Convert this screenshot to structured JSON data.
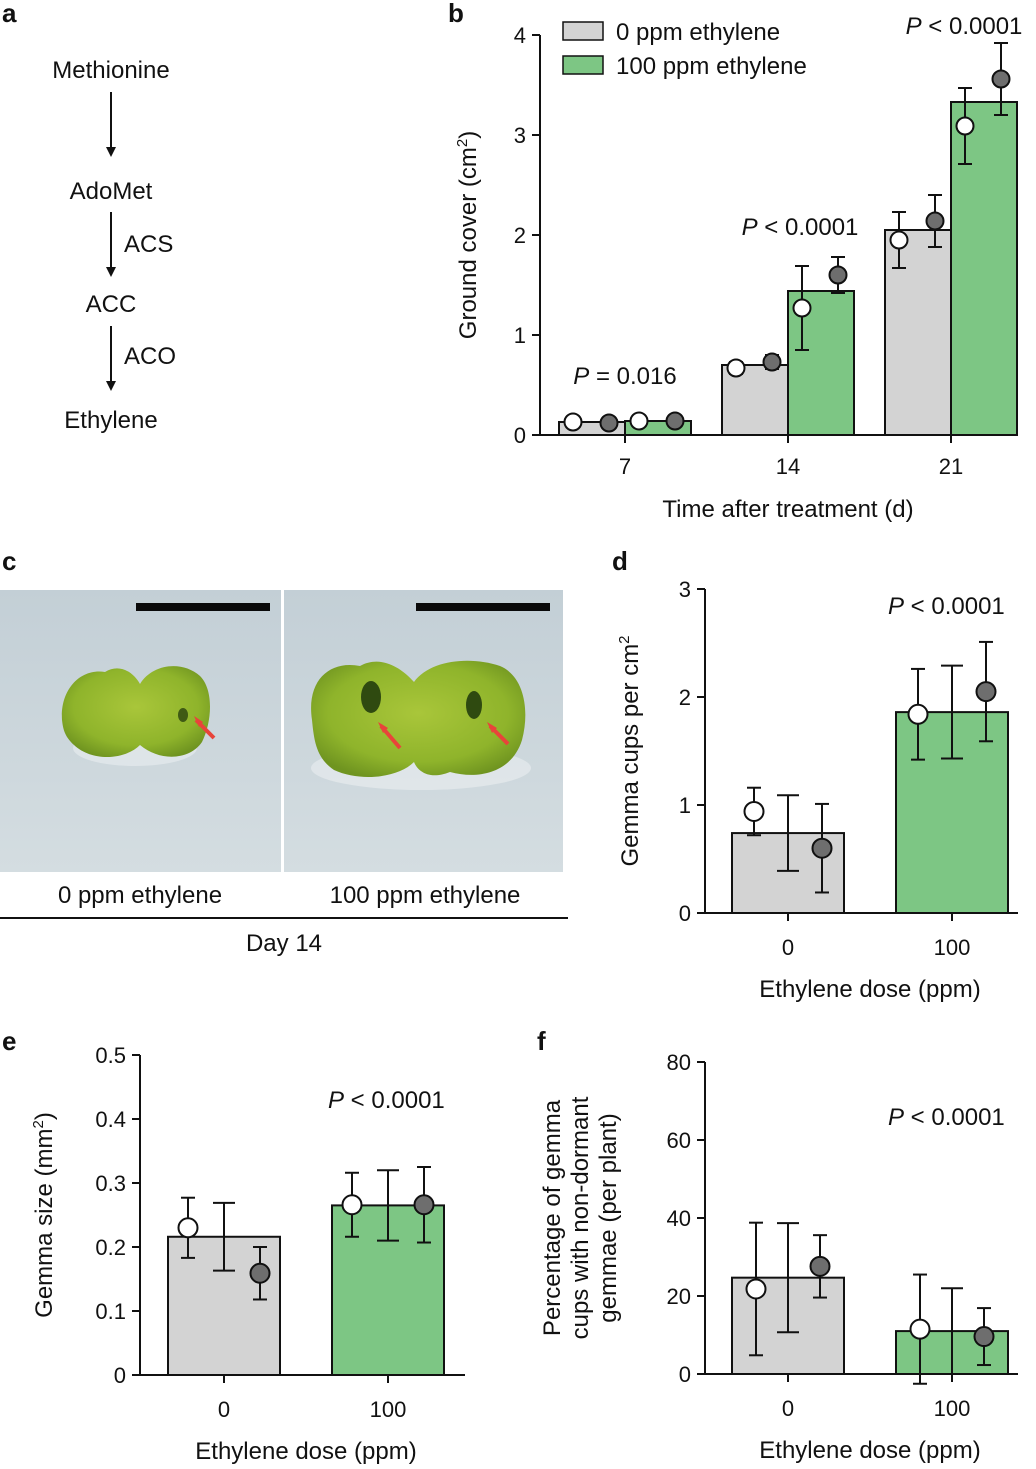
{
  "colors": {
    "control": "#d3d3d3",
    "treated": "#7dc684",
    "dark_point": "#6e6e6e",
    "arrow_red": "#e8443a"
  },
  "panel_a": {
    "letter": "a",
    "nodes": [
      "Methionine",
      "AdoMet",
      "ACC",
      "Ethylene"
    ],
    "enzymes": [
      "ACS",
      "ACO"
    ]
  },
  "panel_c": {
    "letter": "c",
    "labels": [
      "0 ppm ethylene",
      "100 ppm ethylene"
    ],
    "day": "Day 14"
  },
  "chart_data": [
    {
      "panel": "b",
      "type": "bar",
      "categories": [
        "7",
        "14",
        "21"
      ],
      "xlabel": "Time after treatment (d)",
      "ylabel": "Ground cover (cm²)",
      "ylim": [
        0,
        4
      ],
      "yticks": [
        "0",
        "1",
        "2",
        "3",
        "4"
      ],
      "legend": [
        "0 ppm ethylene",
        "100 ppm ethylene"
      ],
      "legend_position": "top-left",
      "series": [
        {
          "name": "0 ppm ethylene",
          "values": [
            0.13,
            0.7,
            2.05
          ],
          "replicates": [
            {
              "values": [
                0.13,
                0.67,
                1.95
              ],
              "err": [
                0.02,
                0.06,
                0.28
              ]
            },
            {
              "values": [
                0.12,
                0.73,
                2.14
              ],
              "err": [
                0.02,
                0.07,
                0.26
              ]
            }
          ]
        },
        {
          "name": "100 ppm ethylene",
          "values": [
            0.14,
            1.44,
            3.33
          ],
          "replicates": [
            {
              "values": [
                0.14,
                1.27,
                3.09
              ],
              "err": [
                0.03,
                0.42,
                0.38
              ]
            },
            {
              "values": [
                0.14,
                1.6,
                3.56
              ],
              "err": [
                0.02,
                0.18,
                0.36
              ]
            }
          ]
        }
      ],
      "pvalues": [
        "P = 0.016",
        "P < 0.0001",
        "P < 0.0001"
      ]
    },
    {
      "panel": "d",
      "type": "bar",
      "categories": [
        "0",
        "100"
      ],
      "xlabel": "Ethylene dose (ppm)",
      "ylabel": "Gemma cups per cm²",
      "ylim": [
        0,
        3
      ],
      "yticks": [
        "0",
        "1",
        "2",
        "3"
      ],
      "values": [
        0.74,
        1.86
      ],
      "bar_err": [
        0.35,
        0.43
      ],
      "replicates": [
        {
          "values": [
            0.94,
            1.84
          ],
          "err": [
            0.22,
            0.42
          ]
        },
        {
          "values": [
            0.6,
            2.05
          ],
          "err": [
            0.41,
            0.46
          ]
        }
      ],
      "pvalue": "P < 0.0001"
    },
    {
      "panel": "e",
      "type": "bar",
      "categories": [
        "0",
        "100"
      ],
      "xlabel": "Ethylene dose (ppm)",
      "ylabel": "Gemma size (mm²)",
      "ylim": [
        0,
        0.5
      ],
      "yticks": [
        "0",
        "0.1",
        "0.2",
        "0.3",
        "0.4",
        "0.5"
      ],
      "values": [
        0.216,
        0.265
      ],
      "bar_err": [
        0.053,
        0.055
      ],
      "replicates": [
        {
          "values": [
            0.23,
            0.266
          ],
          "err": [
            0.047,
            0.05
          ]
        },
        {
          "values": [
            0.159,
            0.266
          ],
          "err": [
            0.041,
            0.059
          ]
        }
      ],
      "pvalue": "P < 0.0001"
    },
    {
      "panel": "f",
      "type": "bar",
      "categories": [
        "0",
        "100"
      ],
      "xlabel": "Ethylene dose (ppm)",
      "ylabel": "Percentage of gemma cups with non-dormant gemmae (per plant)",
      "ylabel_lines": [
        "Percentage of gemma",
        "cups with non-dormant",
        "gemmae (per plant)"
      ],
      "ylim": [
        0,
        80
      ],
      "yticks": [
        "0",
        "20",
        "40",
        "60",
        "80"
      ],
      "values": [
        24.7,
        11
      ],
      "bar_err": [
        14,
        11
      ],
      "replicates": [
        {
          "values": [
            21.8,
            11.5
          ],
          "err": [
            17,
            14
          ]
        },
        {
          "values": [
            27.6,
            9.6
          ],
          "err": [
            8,
            7.3
          ]
        }
      ],
      "pvalue": "P < 0.0001"
    }
  ]
}
